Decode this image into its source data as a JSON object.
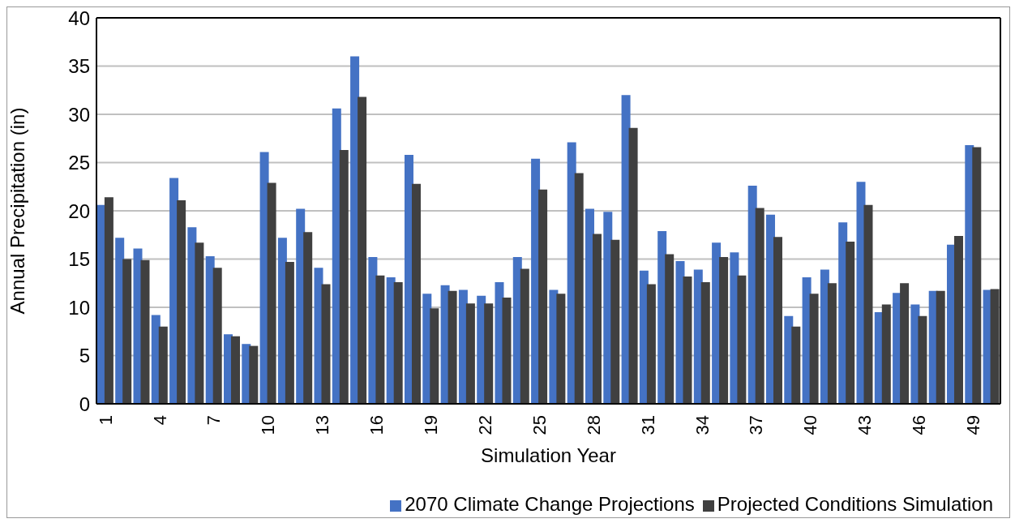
{
  "chart_data": {
    "type": "bar",
    "xlabel": "Simulation Year",
    "ylabel": "Annual Precipitation (in)",
    "categories": [
      "1",
      null,
      null,
      "4",
      null,
      null,
      "7",
      null,
      null,
      "10",
      null,
      null,
      "13",
      null,
      null,
      "16",
      null,
      null,
      "19",
      null,
      null,
      "22",
      null,
      null,
      "25",
      null,
      null,
      "28",
      null,
      null,
      "31",
      null,
      null,
      "34",
      null,
      null,
      "37",
      null,
      null,
      "40",
      null,
      null,
      "43",
      null,
      null,
      "46",
      null,
      null,
      "49",
      null
    ],
    "series": [
      {
        "name": "2070 Climate Change Projections",
        "color": "#4472c4",
        "values": [
          20.6,
          17.2,
          16.1,
          9.2,
          23.4,
          18.3,
          15.3,
          7.2,
          6.2,
          26.1,
          17.2,
          20.2,
          14.1,
          30.6,
          36.0,
          15.2,
          13.1,
          25.8,
          11.4,
          12.3,
          11.8,
          11.2,
          12.6,
          15.2,
          25.4,
          11.8,
          27.1,
          20.2,
          19.9,
          32.0,
          13.8,
          17.9,
          14.8,
          13.9,
          16.7,
          15.7,
          22.6,
          19.6,
          9.1,
          13.1,
          13.9,
          18.8,
          23.0,
          9.5,
          11.5,
          10.3,
          11.7,
          16.5,
          26.8,
          11.8
        ]
      },
      {
        "name": "Projected Conditions Simulation",
        "color": "#404040",
        "values": [
          21.4,
          15.0,
          14.9,
          8.0,
          21.1,
          16.7,
          14.1,
          7.0,
          6.0,
          22.9,
          14.7,
          17.8,
          12.4,
          26.3,
          31.8,
          13.3,
          12.6,
          22.8,
          9.9,
          11.7,
          10.4,
          10.4,
          11.0,
          14.0,
          22.2,
          11.4,
          23.9,
          17.6,
          17.0,
          28.6,
          12.4,
          15.5,
          13.2,
          12.6,
          15.2,
          13.3,
          20.3,
          17.3,
          8.0,
          11.4,
          12.5,
          16.8,
          20.6,
          10.3,
          12.5,
          9.1,
          11.7,
          17.4,
          26.6,
          11.9
        ]
      }
    ],
    "ylim": [
      0,
      40
    ],
    "yticks": [
      0,
      5,
      10,
      15,
      20,
      25,
      30,
      35,
      40
    ],
    "grid": "y",
    "legend": "bottom right"
  }
}
